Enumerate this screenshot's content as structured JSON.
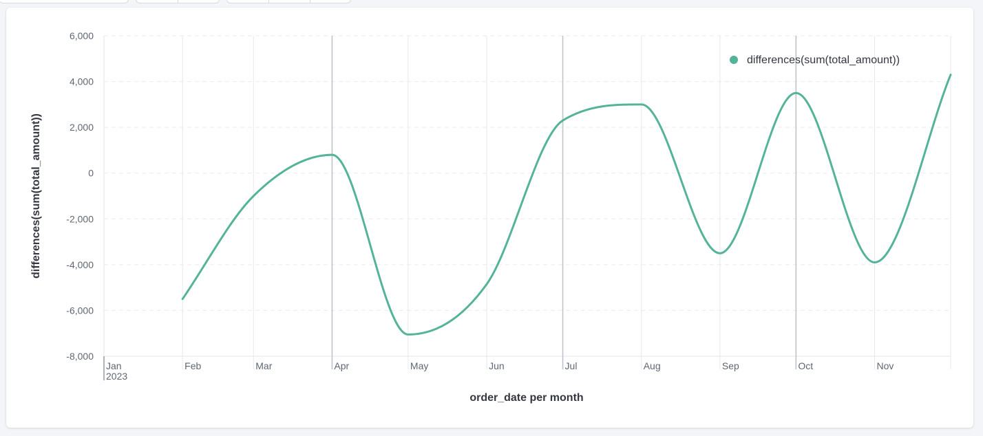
{
  "chart_data": {
    "type": "line",
    "xlabel": "order_date per month",
    "ylabel": "differences(sum(total_amount))",
    "x_ticks": [
      "Jan",
      "Feb",
      "Mar",
      "Apr",
      "May",
      "Jun",
      "Jul",
      "Aug",
      "Sep",
      "Oct",
      "Nov"
    ],
    "x_year_label": "2023",
    "y_ticks": [
      "6,000",
      "4,000",
      "2,000",
      "0",
      "-2,000",
      "-4,000",
      "-6,000",
      "-8,000"
    ],
    "ylim": [
      -8000,
      6000
    ],
    "grid": true,
    "legend_position": "top-right",
    "series": [
      {
        "name": "differences(sum(total_amount))",
        "color": "#54b399",
        "points": [
          {
            "x": "2023-02-01",
            "y": -5500
          },
          {
            "x": "2023-03-01",
            "y": -1000
          },
          {
            "x": "2023-04-01",
            "y": 800
          },
          {
            "x": "2023-05-01",
            "y": -7050
          },
          {
            "x": "2023-06-01",
            "y": -4850
          },
          {
            "x": "2023-07-01",
            "y": 2300
          },
          {
            "x": "2023-08-01",
            "y": 3000
          },
          {
            "x": "2023-09-01",
            "y": -3500
          },
          {
            "x": "2023-10-01",
            "y": 3500
          },
          {
            "x": "2023-11-01",
            "y": -3900
          },
          {
            "x": "2023-12-01",
            "y": 4300
          }
        ]
      }
    ]
  }
}
